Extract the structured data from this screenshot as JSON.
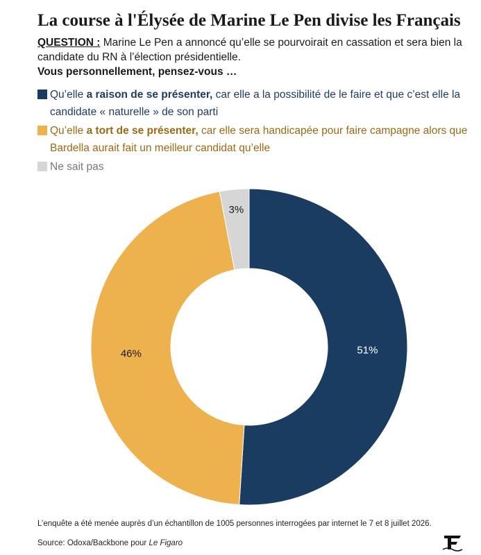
{
  "title": "La course à l'Élysée de Marine Le Pen divise les Français",
  "question": {
    "label": "QUESTION :",
    "text": " Marine Le Pen a annoncé qu’elle se pourvoirait en cassation et sera bien la candidate du RN à l’élection présidentielle."
  },
  "prompt": "Vous personnellement, pensez-vous …",
  "legend": [
    {
      "prefix": "Qu’elle ",
      "bold": "a raison de se présenter,",
      "rest": " car elle a la possibilité de le faire et que c’est elle la candidate « naturelle » de son parti"
    },
    {
      "prefix": "Qu’elle ",
      "bold": "a tort de se présenter,",
      "rest": " car elle sera handicapée pour faire campagne alors que Bardella aurait fait un meilleur candidat qu’elle"
    },
    {
      "prefix": "Ne sait pas",
      "bold": "",
      "rest": ""
    }
  ],
  "chart_data": {
    "type": "pie",
    "donut": true,
    "categories": [
      "Qu’elle a raison de se présenter",
      "Qu’elle a tort de se présenter",
      "Ne sait pas"
    ],
    "values": [
      51,
      46,
      3
    ],
    "labels": [
      "51%",
      "46%",
      "3%"
    ],
    "colors": [
      "#1b3c61",
      "#edb14d",
      "#d6d6d6"
    ],
    "label_colors": [
      "#ffffff",
      "#1a1a1a",
      "#1a1a1a"
    ],
    "start": "top",
    "direction": "clockwise"
  },
  "footnote": "L’enquête a été menée auprès d’un échantillon de 1005 personnes interrogées par internet le 7 et 8 juillet 2026.",
  "source": {
    "prefix": "Source: Odoxa/Backbone pour ",
    "publication": "Le Figaro"
  }
}
